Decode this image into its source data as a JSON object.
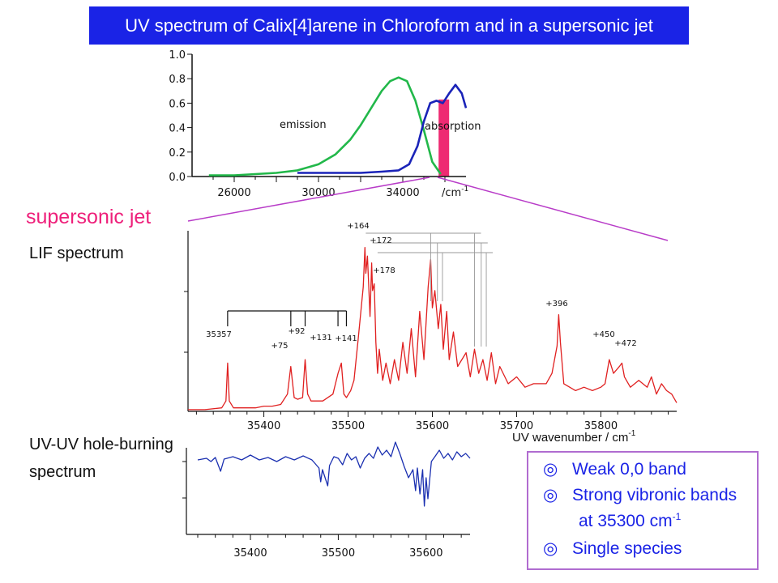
{
  "title": "UV spectrum of Calix[4]arene in Chloroform and in a supersonic jet",
  "labels": {
    "supersonic_jet": "supersonic jet",
    "lif_spectrum": "LIF spectrum",
    "holeburning_line1": "UV-UV hole-burning",
    "holeburning_line2": "spectrum"
  },
  "summary": {
    "mark": "◎",
    "items": [
      "Weak 0,0 band",
      "Strong vibronic bands",
      "Single species"
    ],
    "indent_line_prefix": "at 35300 cm",
    "indent_line_sup": "-1"
  },
  "colors": {
    "title_bg": "#1a23e6",
    "emission": "#22b84a",
    "absorption": "#1a23b8",
    "highlight_bar": "#ee2a72",
    "lif": "#e02020",
    "holeburning": "#1a2fb0",
    "connector": "#b83cc8",
    "summary_text": "#1a23e6",
    "summary_border": "#b06cd0"
  },
  "chart_data": [
    {
      "type": "line",
      "title": "",
      "xlabel": "/cm-1",
      "ylabel": "",
      "xlim": [
        24000,
        37000
      ],
      "ylim": [
        0,
        1
      ],
      "x_ticks": [
        26000,
        30000,
        34000
      ],
      "y_ticks": [
        0.0,
        0.2,
        0.4,
        0.6,
        0.8,
        1.0
      ],
      "y_tick_labels": [
        "0.0",
        "0.2",
        "0.4",
        "0.6",
        "0.8",
        "1.0"
      ],
      "series": [
        {
          "name": "emission",
          "x": [
            24800,
            26000,
            27000,
            28000,
            29000,
            30000,
            30800,
            31500,
            32000,
            32500,
            33000,
            33400,
            33800,
            34200,
            34600,
            35000,
            35400,
            35800
          ],
          "y": [
            0.01,
            0.01,
            0.02,
            0.03,
            0.05,
            0.1,
            0.18,
            0.3,
            0.42,
            0.56,
            0.7,
            0.78,
            0.81,
            0.78,
            0.62,
            0.38,
            0.12,
            0.02
          ]
        },
        {
          "name": "absorption",
          "x": [
            29000,
            30000,
            31000,
            32000,
            33000,
            33800,
            34300,
            34700,
            35000,
            35300,
            35600,
            35900,
            36200,
            36500,
            36800,
            37000
          ],
          "y": [
            0.03,
            0.03,
            0.03,
            0.03,
            0.04,
            0.05,
            0.1,
            0.25,
            0.45,
            0.6,
            0.62,
            0.6,
            0.68,
            0.75,
            0.68,
            0.56
          ]
        }
      ],
      "highlight_band": [
        35700,
        36200
      ]
    },
    {
      "type": "line",
      "title": "",
      "xlabel": "UV wavenumber / cm-1",
      "xlim": [
        35310,
        35890
      ],
      "x_ticks": [
        35400,
        35500,
        35600,
        35700,
        35800
      ],
      "series": [
        {
          "name": "LIF",
          "x": [
            35310,
            35330,
            35350,
            35355,
            35357,
            35359,
            35364,
            35390,
            35400,
            35410,
            35420,
            35428,
            35432,
            35436,
            35440,
            35446,
            35449,
            35452,
            35456,
            35470,
            35482,
            35488,
            35492,
            35495,
            35498,
            35503,
            35507,
            35512,
            35518,
            35520,
            35521,
            35523,
            35526,
            35528,
            35529,
            35531,
            35533,
            35535,
            35537,
            35541,
            35545,
            35550,
            35555,
            35560,
            35565,
            35570,
            35575,
            35580,
            35585,
            35590,
            35595,
            35598,
            35600,
            35603,
            35607,
            35610,
            35613,
            35617,
            35620,
            35625,
            35630,
            35640,
            35645,
            35650,
            35655,
            35660,
            35665,
            35670,
            35675,
            35680,
            35690,
            35700,
            35710,
            35720,
            35735,
            35742,
            35748,
            35750,
            35752,
            35756,
            35770,
            35780,
            35790,
            35800,
            35805,
            35810,
            35815,
            35822,
            35825,
            35828,
            35835,
            35845,
            35855,
            35860,
            35866,
            35872,
            35878,
            35884,
            35890
          ],
          "y": [
            0.01,
            0.01,
            0.02,
            0.06,
            0.28,
            0.06,
            0.02,
            0.02,
            0.03,
            0.03,
            0.04,
            0.1,
            0.26,
            0.08,
            0.07,
            0.08,
            0.3,
            0.1,
            0.06,
            0.06,
            0.1,
            0.22,
            0.28,
            0.1,
            0.08,
            0.12,
            0.18,
            0.42,
            0.72,
            0.95,
            0.8,
            0.9,
            0.55,
            0.86,
            0.7,
            0.74,
            0.4,
            0.22,
            0.36,
            0.18,
            0.28,
            0.16,
            0.3,
            0.18,
            0.4,
            0.22,
            0.48,
            0.2,
            0.58,
            0.3,
            0.72,
            0.88,
            0.6,
            0.7,
            0.48,
            0.62,
            0.36,
            0.58,
            0.3,
            0.46,
            0.26,
            0.34,
            0.2,
            0.36,
            0.22,
            0.3,
            0.18,
            0.34,
            0.16,
            0.26,
            0.16,
            0.2,
            0.14,
            0.16,
            0.16,
            0.22,
            0.38,
            0.56,
            0.4,
            0.16,
            0.12,
            0.14,
            0.12,
            0.14,
            0.16,
            0.3,
            0.22,
            0.26,
            0.28,
            0.2,
            0.14,
            0.18,
            0.14,
            0.2,
            0.1,
            0.16,
            0.12,
            0.1,
            0.05
          ]
        }
      ],
      "annotations": [
        "35357",
        "+75",
        "+92",
        "+131",
        "+141",
        "+164",
        "+172",
        "+178",
        "+396",
        "+450",
        "+472"
      ]
    },
    {
      "type": "line",
      "title": "",
      "xlabel": "",
      "xlim": [
        35340,
        35650
      ],
      "x_ticks": [
        35400,
        35500,
        35600
      ],
      "series": [
        {
          "name": "hole-burning",
          "x": [
            35340,
            35350,
            35355,
            35360,
            35366,
            35370,
            35380,
            35390,
            35400,
            35410,
            35420,
            35430,
            35440,
            35450,
            35460,
            35470,
            35478,
            35480,
            35482,
            35488,
            35490,
            35495,
            35500,
            35505,
            35510,
            35515,
            35520,
            35525,
            35530,
            35535,
            35540,
            35545,
            35550,
            35555,
            35560,
            35565,
            35570,
            35575,
            35580,
            35585,
            35588,
            35590,
            35593,
            35596,
            35598,
            35600,
            35602,
            35606,
            35610,
            35615,
            35620,
            35625,
            35630,
            35635,
            35640,
            35645,
            35650
          ],
          "y": [
            0.02,
            0.04,
            0.0,
            0.05,
            -0.12,
            0.03,
            0.06,
            0.02,
            0.08,
            0.02,
            0.05,
            0.0,
            0.06,
            0.02,
            0.07,
            0.02,
            -0.08,
            -0.25,
            -0.1,
            -0.3,
            -0.05,
            0.06,
            0.04,
            -0.04,
            0.1,
            0.02,
            0.06,
            -0.08,
            0.04,
            0.1,
            0.04,
            0.18,
            0.08,
            0.14,
            0.06,
            0.24,
            0.1,
            -0.06,
            -0.2,
            -0.1,
            -0.36,
            -0.08,
            -0.4,
            -0.1,
            -0.55,
            -0.2,
            -0.46,
            0.0,
            0.06,
            0.14,
            0.04,
            0.1,
            0.02,
            0.12,
            0.06,
            0.1,
            0.04
          ]
        }
      ]
    }
  ]
}
